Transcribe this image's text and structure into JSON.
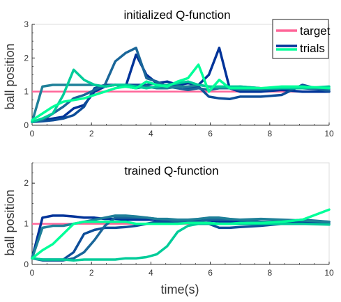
{
  "chart_data": [
    {
      "type": "line",
      "title": "initialized Q-function",
      "xlabel": "",
      "ylabel": "ball position",
      "xlim": [
        0,
        10
      ],
      "ylim": [
        0,
        3
      ],
      "xticks": [
        "0",
        "2",
        "4",
        "6",
        "8",
        "10"
      ],
      "yticks": [
        "0",
        "1",
        "2",
        "3"
      ],
      "grid": false,
      "legend": {
        "placement": "top-right",
        "entries": [
          {
            "label": "target",
            "color": "#ff6699"
          },
          {
            "label": "trials",
            "colors": [
              "#003399",
              "#00ff99"
            ]
          }
        ]
      },
      "target": {
        "y": 1.0,
        "color": "#ff6699"
      },
      "series": [
        {
          "color": "#003399",
          "x": [
            0,
            0.35,
            0.7,
            1.05,
            1.4,
            1.75,
            2.1,
            2.45,
            2.8,
            3.15,
            3.5,
            3.85,
            4.2,
            4.55,
            4.9,
            5.25,
            5.6,
            5.95,
            6.3,
            6.65,
            7.0,
            7.7,
            8.4,
            9.1,
            10.0
          ],
          "y": [
            0.1,
            0.15,
            0.2,
            0.25,
            0.5,
            0.6,
            1.0,
            1.15,
            1.2,
            1.15,
            2.1,
            1.5,
            1.25,
            1.3,
            1.2,
            1.25,
            1.2,
            1.5,
            2.3,
            1.1,
            1.0,
            1.0,
            1.05,
            1.0,
            1.0
          ]
        },
        {
          "color": "#0d4d99",
          "x": [
            0,
            0.35,
            0.7,
            1.05,
            1.4,
            1.75,
            2.1,
            2.45,
            2.8,
            3.15,
            3.5,
            3.85,
            4.2,
            4.55,
            4.9,
            5.25,
            5.6,
            5.95,
            6.3,
            6.65,
            7.0,
            7.7,
            8.4,
            9.1,
            10.0
          ],
          "y": [
            0.1,
            0.12,
            0.15,
            0.2,
            0.3,
            0.55,
            1.1,
            1.2,
            1.2,
            1.2,
            1.2,
            1.2,
            1.25,
            1.15,
            1.2,
            1.1,
            1.15,
            0.85,
            0.8,
            0.78,
            0.85,
            0.85,
            0.9,
            1.2,
            1.0
          ]
        },
        {
          "color": "#1a6699",
          "x": [
            0,
            0.35,
            0.7,
            1.05,
            1.4,
            1.75,
            2.1,
            2.45,
            2.8,
            3.15,
            3.5,
            3.85,
            4.2,
            4.55,
            4.9,
            5.25,
            5.6,
            5.95,
            6.3,
            6.65,
            7.0,
            7.7,
            8.4,
            9.1,
            10.0
          ],
          "y": [
            0.1,
            0.15,
            0.35,
            0.55,
            0.8,
            0.9,
            1.05,
            1.2,
            1.9,
            2.15,
            2.3,
            1.4,
            1.3,
            1.15,
            1.1,
            1.05,
            1.1,
            1.05,
            1.1,
            1.1,
            1.05,
            1.05,
            1.1,
            1.1,
            1.05
          ]
        },
        {
          "color": "#1f8099",
          "x": [
            0,
            0.35,
            0.7,
            1.05,
            1.4,
            1.75,
            2.1,
            2.45,
            2.8,
            3.15,
            3.5,
            3.85,
            4.2,
            4.55,
            4.9,
            5.25,
            5.6,
            5.95,
            6.3,
            6.65,
            7.0,
            7.7,
            8.4,
            9.1,
            10.0
          ],
          "y": [
            0.1,
            1.15,
            1.2,
            1.2,
            1.2,
            1.2,
            1.2,
            1.15,
            1.2,
            1.15,
            1.1,
            1.15,
            1.1,
            1.1,
            1.15,
            1.15,
            1.2,
            1.15,
            1.1,
            1.1,
            1.15,
            1.1,
            1.1,
            1.1,
            1.1
          ]
        },
        {
          "color": "#00cc99",
          "x": [
            0,
            0.35,
            0.7,
            1.05,
            1.4,
            1.75,
            2.1,
            2.45,
            2.8,
            3.15,
            3.5,
            3.85,
            4.2,
            4.55,
            4.9,
            5.25,
            5.6,
            5.95,
            6.3,
            6.65,
            7.0,
            7.7,
            8.4,
            9.1,
            10.0
          ],
          "y": [
            0.1,
            0.2,
            0.35,
            0.9,
            1.65,
            1.35,
            1.2,
            1.15,
            1.2,
            1.2,
            1.15,
            1.1,
            1.15,
            1.2,
            1.25,
            1.3,
            1.2,
            1.15,
            1.15,
            1.15,
            1.15,
            1.1,
            1.1,
            1.1,
            1.15
          ]
        },
        {
          "color": "#00ff99",
          "x": [
            0,
            0.35,
            0.7,
            1.05,
            1.4,
            1.75,
            2.1,
            2.45,
            2.8,
            3.15,
            3.5,
            3.85,
            4.2,
            4.55,
            4.9,
            5.25,
            5.6,
            5.95,
            6.3,
            6.65,
            7.0,
            7.7,
            8.4,
            9.1,
            10.0
          ],
          "y": [
            0.15,
            0.35,
            0.55,
            0.7,
            0.75,
            0.8,
            0.9,
            1.0,
            1.1,
            1.15,
            1.1,
            1.3,
            1.2,
            1.15,
            1.3,
            1.4,
            1.8,
            1.0,
            1.35,
            1.1,
            1.1,
            1.1,
            1.15,
            1.15,
            1.1
          ]
        }
      ]
    },
    {
      "type": "line",
      "title": "trained Q-function",
      "xlabel": "time(s)",
      "ylabel": "ball position",
      "xlim": [
        0,
        10
      ],
      "ylim": [
        0,
        2.5
      ],
      "xticks": [
        "0",
        "2",
        "4",
        "6",
        "8",
        "10"
      ],
      "yticks": [
        "0",
        "1",
        "2"
      ],
      "grid": false,
      "target": {
        "y": 1.0,
        "color": "#ff6699"
      },
      "series": [
        {
          "color": "#003399",
          "x": [
            0,
            0.35,
            0.7,
            1.05,
            1.4,
            1.75,
            2.1,
            2.45,
            2.8,
            3.15,
            3.5,
            3.85,
            4.2,
            4.55,
            4.9,
            5.25,
            5.6,
            5.95,
            6.3,
            6.65,
            7.0,
            7.7,
            8.4,
            9.1,
            10.0
          ],
          "y": [
            0.15,
            1.15,
            1.2,
            1.2,
            1.18,
            1.15,
            1.15,
            1.12,
            1.12,
            1.1,
            1.1,
            1.1,
            1.1,
            1.08,
            1.08,
            1.08,
            1.1,
            1.08,
            1.06,
            1.06,
            1.05,
            1.05,
            1.05,
            1.05,
            1.05
          ]
        },
        {
          "color": "#0d4d99",
          "x": [
            0,
            0.35,
            0.7,
            1.05,
            1.4,
            1.75,
            2.1,
            2.45,
            2.8,
            3.15,
            3.5,
            3.85,
            4.2,
            4.55,
            4.9,
            5.25,
            5.6,
            5.95,
            6.3,
            6.65,
            7.0,
            7.7,
            8.4,
            9.1,
            10.0
          ],
          "y": [
            0.15,
            0.12,
            0.12,
            0.12,
            0.3,
            0.75,
            0.85,
            0.9,
            0.9,
            0.92,
            0.95,
            1.0,
            1.05,
            1.05,
            1.05,
            1.05,
            1.0,
            1.0,
            0.9,
            0.9,
            0.92,
            0.95,
            1.0,
            1.0,
            1.0
          ]
        },
        {
          "color": "#1a6699",
          "x": [
            0,
            0.35,
            0.7,
            1.05,
            1.4,
            1.75,
            2.1,
            2.45,
            2.8,
            3.15,
            3.5,
            3.85,
            4.2,
            4.55,
            4.9,
            5.25,
            5.6,
            5.95,
            6.3,
            6.65,
            7.0,
            7.7,
            8.4,
            9.1,
            10.0
          ],
          "y": [
            0.15,
            0.1,
            0.1,
            0.1,
            0.15,
            0.3,
            0.6,
            0.95,
            1.15,
            1.15,
            1.15,
            1.15,
            1.12,
            1.1,
            1.05,
            1.05,
            1.05,
            1.1,
            1.1,
            1.1,
            1.1,
            1.05,
            1.05,
            1.1,
            1.05
          ]
        },
        {
          "color": "#1f8099",
          "x": [
            0,
            0.35,
            0.7,
            1.05,
            1.4,
            1.75,
            2.1,
            2.45,
            2.8,
            3.15,
            3.5,
            3.85,
            4.2,
            4.55,
            4.9,
            5.25,
            5.6,
            5.95,
            6.3,
            6.65,
            7.0,
            7.7,
            8.4,
            9.1,
            10.0
          ],
          "y": [
            0.15,
            0.9,
            0.95,
            0.95,
            1.0,
            1.05,
            1.1,
            1.15,
            1.2,
            1.2,
            1.18,
            1.15,
            1.12,
            1.12,
            1.1,
            1.1,
            1.12,
            1.15,
            1.15,
            1.12,
            1.1,
            1.12,
            1.1,
            1.08,
            1.05
          ]
        },
        {
          "color": "#00cc99",
          "x": [
            0,
            0.35,
            0.7,
            1.05,
            1.4,
            1.75,
            2.1,
            2.45,
            2.8,
            3.15,
            3.5,
            3.85,
            4.2,
            4.55,
            4.9,
            5.25,
            5.6,
            5.95,
            6.3,
            6.65,
            7.0,
            7.7,
            8.4,
            9.1,
            10.0
          ],
          "y": [
            0.15,
            0.12,
            0.12,
            0.12,
            0.1,
            0.12,
            0.12,
            0.12,
            0.12,
            0.15,
            0.15,
            0.18,
            0.25,
            0.45,
            0.8,
            0.95,
            1.0,
            1.0,
            1.0,
            1.0,
            1.0,
            1.0,
            1.0,
            1.0,
            0.98
          ]
        },
        {
          "color": "#00ff99",
          "x": [
            0,
            0.35,
            0.7,
            1.05,
            1.4,
            1.75,
            2.1,
            2.45,
            2.8,
            3.15,
            3.5,
            3.85,
            4.2,
            4.55,
            4.9,
            5.25,
            5.6,
            5.95,
            6.3,
            6.65,
            7.0,
            7.7,
            8.4,
            9.1,
            10.0
          ],
          "y": [
            0.15,
            0.35,
            0.5,
            0.75,
            1.0,
            1.05,
            1.05,
            1.05,
            1.05,
            1.05,
            1.0,
            1.0,
            1.0,
            1.0,
            1.0,
            1.02,
            1.02,
            1.02,
            1.0,
            1.0,
            1.02,
            1.02,
            1.05,
            1.1,
            1.35
          ]
        }
      ]
    }
  ]
}
